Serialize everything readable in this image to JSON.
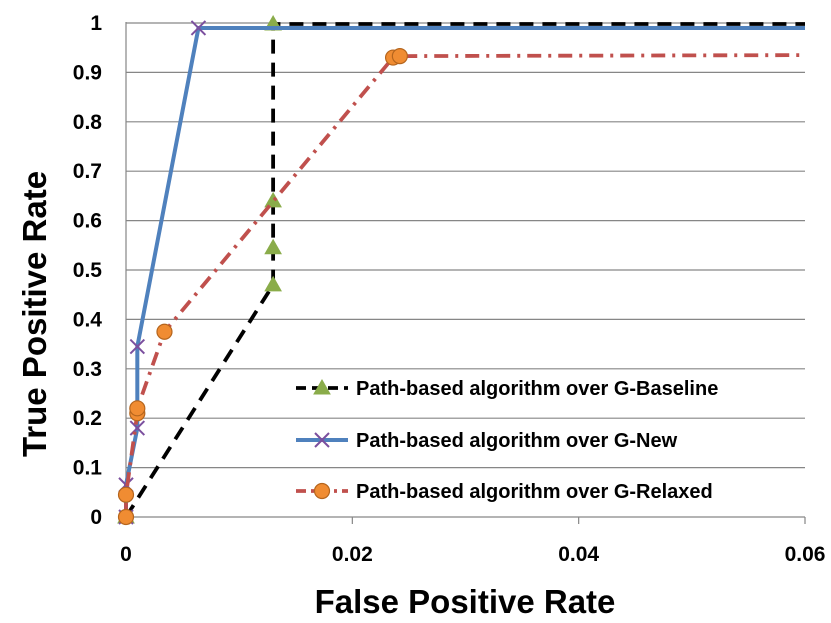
{
  "chart_data": {
    "type": "line",
    "title": "",
    "xlabel": "False Positive Rate",
    "ylabel": "True Positive Rate",
    "xlim": [
      0,
      0.06
    ],
    "ylim": [
      0,
      1
    ],
    "xticks": [
      0,
      0.02,
      0.04,
      0.06
    ],
    "xtick_labels": [
      "0",
      "0.02",
      "0.04",
      "0.06"
    ],
    "yticks": [
      0,
      0.1,
      0.2,
      0.3,
      0.4,
      0.5,
      0.6,
      0.7,
      0.8,
      0.9,
      1
    ],
    "ytick_labels": [
      "0",
      "0.1",
      "0.2",
      "0.3",
      "0.4",
      "0.5",
      "0.6",
      "0.7",
      "0.8",
      "0.9",
      "1"
    ],
    "grid": "horizontal",
    "legend_position": "bottom-right",
    "series": [
      {
        "name": "Path-based algorithm over G-Baseline",
        "color": "#000000",
        "marker": "triangle",
        "marker_color": "#8aac4a",
        "line_style": "dashed",
        "x": [
          0,
          0.013,
          0.013,
          0.013,
          0.013,
          0.06
        ],
        "y": [
          0,
          0.47,
          0.545,
          0.64,
          0.998,
          0.998
        ]
      },
      {
        "name": "Path-based algorithm over G-New",
        "color": "#4f81bd",
        "marker": "x",
        "marker_color": "#7b4f9e",
        "line_style": "solid",
        "x": [
          0,
          0,
          0.001,
          0.001,
          0.0064,
          0.06
        ],
        "y": [
          0,
          0.065,
          0.18,
          0.345,
          0.99,
          0.99
        ]
      },
      {
        "name": "Path-based algorithm over G-Relaxed",
        "color": "#c0504d",
        "marker": "circle",
        "marker_color": "#f08c32",
        "line_style": "dashdot",
        "x": [
          0,
          0,
          0.001,
          0.001,
          0.0034,
          0.0236,
          0.0242,
          0.06
        ],
        "y": [
          0,
          0.045,
          0.21,
          0.22,
          0.375,
          0.93,
          0.933,
          0.935
        ]
      }
    ]
  }
}
